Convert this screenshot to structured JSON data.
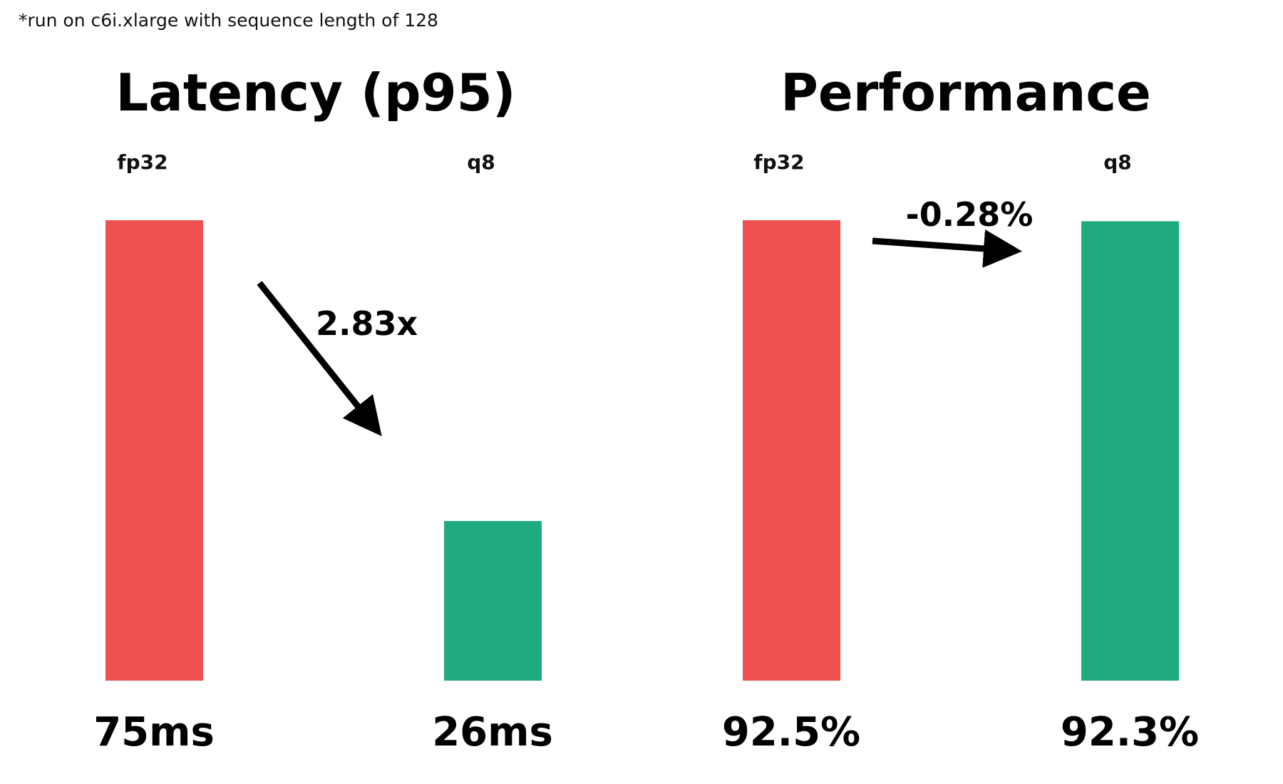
{
  "footnote": "*run on c6i.xlarge with sequence length of 128",
  "colors": {
    "fp32": "#ef5150",
    "q8": "#1fab7f",
    "arrow": "#000000"
  },
  "chart_data": [
    {
      "type": "bar",
      "title": "Latency (p95)",
      "categories": [
        "fp32",
        "q8"
      ],
      "values": [
        75,
        26
      ],
      "value_labels": [
        "75ms",
        "26ms"
      ],
      "annotation": "2.83x",
      "ylim": [
        0,
        75
      ],
      "grid": false
    },
    {
      "type": "bar",
      "title": "Performance",
      "categories": [
        "fp32",
        "q8"
      ],
      "values": [
        92.5,
        92.3
      ],
      "value_labels": [
        "92.5%",
        "92.3%"
      ],
      "annotation": "-0.28%",
      "ylim": [
        0,
        92.5
      ],
      "grid": false
    }
  ]
}
